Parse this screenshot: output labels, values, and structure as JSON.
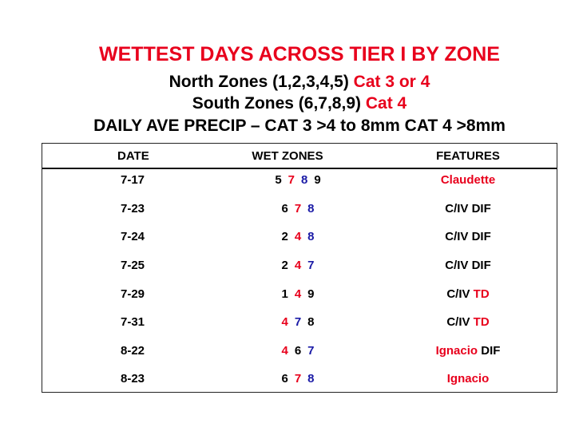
{
  "header": {
    "title": "WETTEST DAYS ACROSS TIER I BY ZONE",
    "north_label": "North Zones (1,2,3,4,5)",
    "north_cat": "Cat 3 or 4",
    "south_label": "South Zones (6,7,8,9)",
    "south_cat": "Cat 4",
    "daily_line": "DAILY AVE PRECIP – CAT 3 >4 to 8mm CAT 4 >8mm"
  },
  "table": {
    "columns": [
      "DATE",
      "WET ZONES",
      "FEATURES"
    ],
    "rows": [
      {
        "date": "7-17",
        "zones": [
          "5",
          "7",
          "8",
          "9"
        ],
        "zone_colors": [
          "black",
          "red",
          "blue",
          "black"
        ],
        "feature_a": "",
        "feature_b": "Claudette"
      },
      {
        "date": "7-23",
        "zones": [
          "6",
          "7",
          "8"
        ],
        "zone_colors": [
          "black",
          "red",
          "blue"
        ],
        "feature_a": "C/IV DIF",
        "feature_b": ""
      },
      {
        "date": "7-24",
        "zones": [
          "2",
          "4",
          "8"
        ],
        "zone_colors": [
          "black",
          "red",
          "blue"
        ],
        "feature_a": "C/IV DIF",
        "feature_b": ""
      },
      {
        "date": "7-25",
        "zones": [
          "2",
          "4",
          "7"
        ],
        "zone_colors": [
          "black",
          "red",
          "blue"
        ],
        "feature_a": "C/IV DIF",
        "feature_b": ""
      },
      {
        "date": "7-29",
        "zones": [
          "1",
          "4",
          "9"
        ],
        "zone_colors": [
          "black",
          "red",
          "black"
        ],
        "feature_a": "C/IV ",
        "feature_b": "TD"
      },
      {
        "date": "7-31",
        "zones": [
          "4",
          "7",
          "8"
        ],
        "zone_colors": [
          "red",
          "blue",
          "black"
        ],
        "feature_a": "C/IV ",
        "feature_b": "TD"
      },
      {
        "date": "8-22",
        "zones": [
          "4",
          "6",
          "7"
        ],
        "zone_colors": [
          "red",
          "black",
          "blue"
        ],
        "feature_b_first": "Ignacio",
        "feature_a": " DIF",
        "feature_b": ""
      },
      {
        "date": "8-23",
        "zones": [
          "6",
          "7",
          "8"
        ],
        "zone_colors": [
          "black",
          "red",
          "blue"
        ],
        "feature_a": "",
        "feature_b": "Ignacio"
      }
    ]
  },
  "colors": {
    "red": "#e8001c",
    "blue": "#1a1aa6",
    "black": "#000000"
  }
}
